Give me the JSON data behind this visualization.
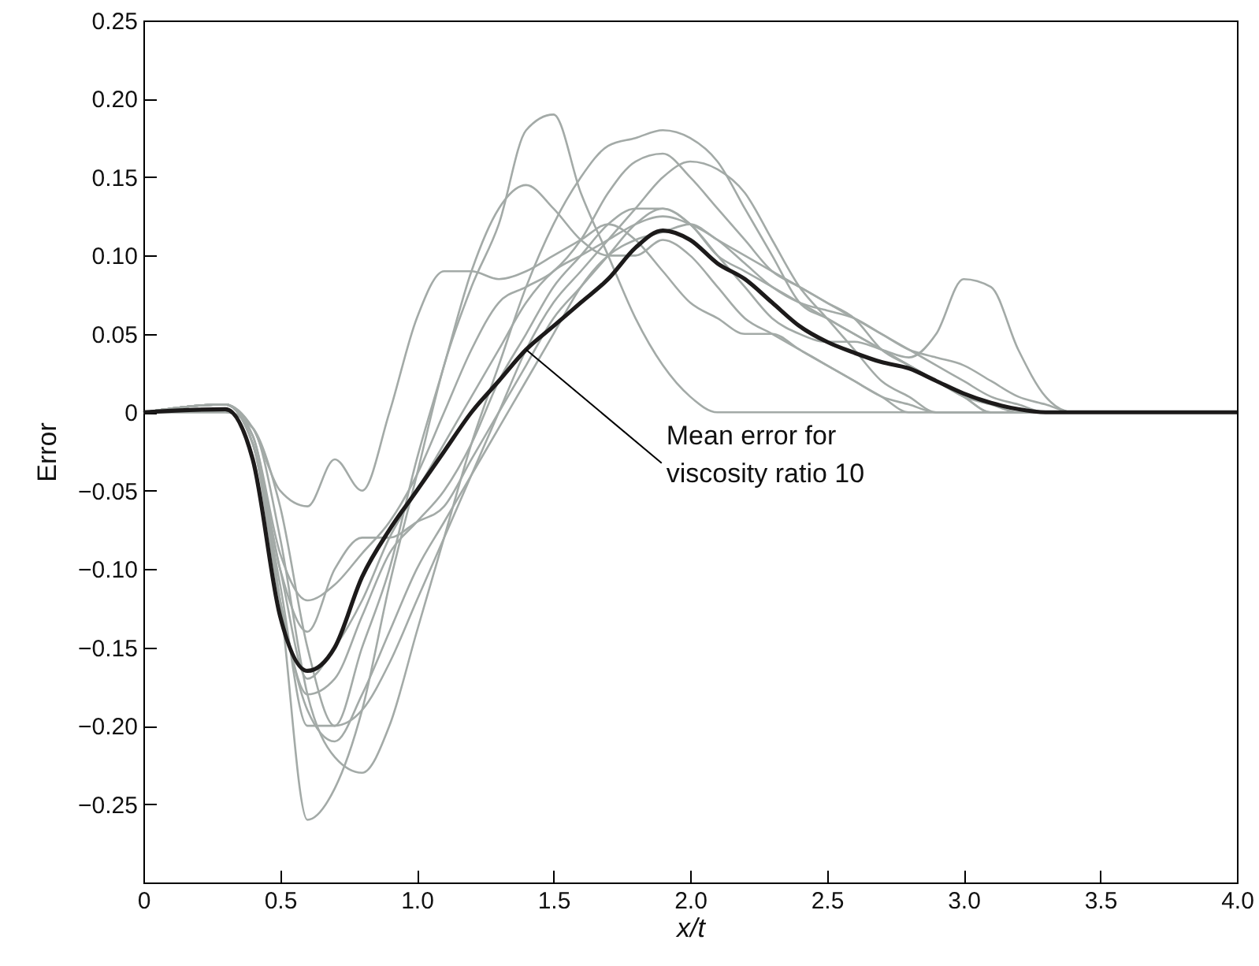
{
  "chart_data": {
    "type": "line",
    "xlabel": "x/t",
    "ylabel": "Error",
    "x": [
      0,
      0.3,
      0.4,
      0.5,
      0.6,
      0.7,
      0.8,
      0.9,
      1.0,
      1.1,
      1.2,
      1.3,
      1.4,
      1.5,
      1.6,
      1.7,
      1.8,
      1.9,
      2.0,
      2.1,
      2.2,
      2.3,
      2.4,
      2.5,
      2.6,
      2.7,
      2.8,
      2.9,
      3.0,
      3.1,
      3.2,
      3.3,
      3.4,
      4.0
    ],
    "series": [
      {
        "color": "#a3aaa7",
        "values": [
          0,
          0.005,
          -0.02,
          -0.12,
          -0.26,
          -0.24,
          -0.19,
          -0.11,
          -0.04,
          0.03,
          0.08,
          0.12,
          0.18,
          0.19,
          0.14,
          0.1,
          0.06,
          0.03,
          0.01,
          0,
          0,
          0,
          0,
          0,
          0,
          0,
          0,
          0,
          0,
          0,
          0,
          0,
          0,
          0
        ]
      },
      {
        "color": "#a3aaa7",
        "values": [
          0,
          0.005,
          -0.01,
          -0.05,
          -0.06,
          -0.03,
          -0.05,
          0.0,
          0.06,
          0.09,
          0.09,
          0.085,
          0.09,
          0.1,
          0.11,
          0.12,
          0.11,
          0.09,
          0.07,
          0.06,
          0.05,
          0.05,
          0.04,
          0.03,
          0.02,
          0.01,
          0,
          0,
          0,
          0,
          0,
          0,
          0,
          0
        ]
      },
      {
        "color": "#a3aaa7",
        "values": [
          0,
          0,
          -0.01,
          -0.08,
          -0.18,
          -0.22,
          -0.23,
          -0.2,
          -0.14,
          -0.08,
          -0.02,
          0.03,
          0.08,
          0.12,
          0.15,
          0.17,
          0.175,
          0.18,
          0.175,
          0.16,
          0.13,
          0.1,
          0.07,
          0.06,
          0.05,
          0.04,
          0.03,
          0.02,
          0.01,
          0,
          0,
          0,
          0,
          0
        ]
      },
      {
        "color": "#a3aaa7",
        "values": [
          0,
          0.005,
          -0.02,
          -0.12,
          -0.18,
          -0.17,
          -0.13,
          -0.09,
          -0.07,
          -0.05,
          -0.02,
          0.02,
          0.05,
          0.08,
          0.1,
          0.12,
          0.13,
          0.13,
          0.12,
          0.1,
          0.08,
          0.06,
          0.05,
          0.045,
          0.045,
          0.04,
          0.035,
          0.05,
          0.085,
          0.08,
          0.04,
          0.01,
          0,
          0
        ]
      },
      {
        "color": "#a3aaa7",
        "values": [
          0,
          0.005,
          -0.02,
          -0.11,
          -0.2,
          -0.2,
          -0.15,
          -0.1,
          -0.03,
          0.03,
          0.09,
          0.13,
          0.145,
          0.13,
          0.11,
          0.1,
          0.1,
          0.11,
          0.1,
          0.08,
          0.06,
          0.05,
          0.04,
          0.03,
          0.02,
          0.01,
          0.005,
          0,
          0,
          0,
          0,
          0,
          0,
          0
        ]
      },
      {
        "color": "#a3aaa7",
        "values": [
          0,
          0,
          -0.01,
          -0.06,
          -0.15,
          -0.2,
          -0.19,
          -0.16,
          -0.12,
          -0.08,
          -0.04,
          0.0,
          0.04,
          0.07,
          0.09,
          0.11,
          0.13,
          0.15,
          0.16,
          0.155,
          0.14,
          0.11,
          0.08,
          0.06,
          0.04,
          0.02,
          0.01,
          0,
          0,
          0,
          0,
          0,
          0,
          0
        ]
      },
      {
        "color": "#a3aaa7",
        "values": [
          0,
          0.005,
          -0.015,
          -0.1,
          -0.14,
          -0.1,
          -0.08,
          -0.08,
          -0.07,
          -0.06,
          -0.03,
          0.0,
          0.03,
          0.06,
          0.08,
          0.1,
          0.12,
          0.13,
          0.12,
          0.1,
          0.09,
          0.08,
          0.07,
          0.06,
          0.05,
          0.04,
          0.03,
          0.02,
          0.01,
          0.005,
          0,
          0,
          0,
          0
        ]
      },
      {
        "color": "#a3aaa7",
        "values": [
          0,
          0.005,
          -0.02,
          -0.12,
          -0.19,
          -0.21,
          -0.18,
          -0.14,
          -0.1,
          -0.07,
          -0.04,
          -0.01,
          0.02,
          0.05,
          0.08,
          0.1,
          0.11,
          0.115,
          0.12,
          0.11,
          0.1,
          0.09,
          0.08,
          0.07,
          0.06,
          0.05,
          0.04,
          0.03,
          0.02,
          0.01,
          0.005,
          0,
          0,
          0
        ]
      },
      {
        "color": "#a3aaa7",
        "values": [
          0,
          0.005,
          -0.02,
          -0.1,
          -0.17,
          -0.15,
          -0.12,
          -0.08,
          -0.05,
          -0.02,
          0.01,
          0.04,
          0.07,
          0.09,
          0.1,
          0.11,
          0.12,
          0.125,
          0.12,
          0.11,
          0.095,
          0.08,
          0.07,
          0.065,
          0.06,
          0.05,
          0.04,
          0.035,
          0.03,
          0.02,
          0.01,
          0.005,
          0,
          0
        ]
      },
      {
        "color": "#a3aaa7",
        "values": [
          0,
          0.005,
          -0.015,
          -0.09,
          -0.12,
          -0.11,
          -0.09,
          -0.07,
          -0.04,
          0.0,
          0.04,
          0.07,
          0.08,
          0.09,
          0.11,
          0.14,
          0.16,
          0.165,
          0.15,
          0.13,
          0.11,
          0.09,
          0.08,
          0.07,
          0.06,
          0.04,
          0.03,
          0.02,
          0.01,
          0,
          0,
          0,
          0,
          0
        ]
      },
      {
        "color": "#1c1a1a",
        "values": [
          0,
          0.002,
          -0.03,
          -0.13,
          -0.165,
          -0.15,
          -0.105,
          -0.075,
          -0.05,
          -0.025,
          0,
          0.02,
          0.04,
          0.055,
          0.07,
          0.085,
          0.105,
          0.116,
          0.11,
          0.095,
          0.085,
          0.07,
          0.055,
          0.045,
          0.038,
          0.032,
          0.028,
          0.02,
          0.012,
          0.006,
          0.002,
          0,
          0,
          0
        ]
      }
    ],
    "xlim": [
      0,
      4
    ],
    "xticks": [
      0,
      0.5,
      {
        "value": 1,
        "label": "1.0"
      },
      1.5,
      {
        "value": 2,
        "label": "2.0"
      },
      2.5,
      {
        "value": 3,
        "label": "3.0"
      },
      3.5,
      {
        "value": 4,
        "label": "4.0"
      }
    ],
    "ylim": [
      -0.3,
      0.25
    ],
    "yticks": [
      {
        "value": -0.25,
        "label": "−0.25"
      },
      {
        "value": -0.2,
        "label": "−0.20"
      },
      {
        "value": -0.15,
        "label": "−0.15"
      },
      {
        "value": -0.1,
        "label": "−0.10"
      },
      {
        "value": -0.05,
        "label": "−0.05"
      },
      0,
      0.05,
      {
        "value": 0.1,
        "label": "0.10"
      },
      0.15,
      {
        "value": 0.2,
        "label": "0.20"
      },
      0.25
    ],
    "annotations": [
      {
        "text": "Mean error for\nviscosity ratio 10",
        "x": 1.4,
        "y": 0.04
      }
    ]
  }
}
